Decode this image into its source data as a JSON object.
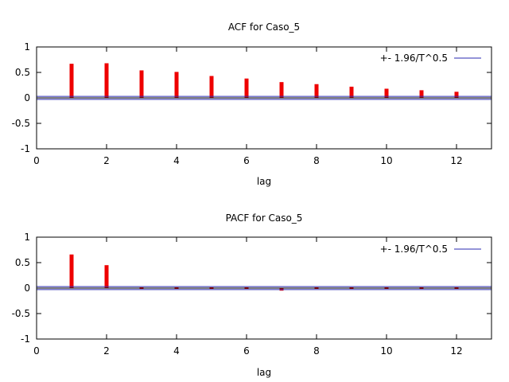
{
  "chart_data": [
    {
      "type": "bar",
      "title": "ACF for Caso_5",
      "xlabel": "lag",
      "ylabel": "",
      "xlim": [
        0,
        13
      ],
      "ylim": [
        -1,
        1
      ],
      "xticks": [
        "0",
        "2",
        "4",
        "6",
        "8",
        "10",
        "12"
      ],
      "yticks": [
        "1",
        "0.5",
        "0",
        "-0.5",
        "-1"
      ],
      "legend": {
        "label": "+- 1.96/T^0.5",
        "color": "#2a2ab0",
        "position": "top-right"
      },
      "band": 0.03,
      "bar_color": "#ee0000",
      "lags": [
        1,
        2,
        3,
        4,
        5,
        6,
        7,
        8,
        9,
        10,
        11,
        12
      ],
      "values": [
        0.67,
        0.68,
        0.54,
        0.51,
        0.43,
        0.38,
        0.31,
        0.27,
        0.22,
        0.18,
        0.15,
        0.12
      ]
    },
    {
      "type": "bar",
      "title": "PACF for Caso_5",
      "xlabel": "lag",
      "ylabel": "",
      "xlim": [
        0,
        13
      ],
      "ylim": [
        -1,
        1
      ],
      "xticks": [
        "0",
        "2",
        "4",
        "6",
        "8",
        "10",
        "12"
      ],
      "yticks": [
        "1",
        "0.5",
        "0",
        "-0.5",
        "-1"
      ],
      "legend": {
        "label": "+- 1.96/T^0.5",
        "color": "#2a2ab0",
        "position": "top-right"
      },
      "band": 0.03,
      "bar_color": "#ee0000",
      "lags": [
        1,
        2,
        3,
        4,
        5,
        6,
        7,
        8,
        9,
        10,
        11,
        12
      ],
      "values": [
        0.66,
        0.45,
        0.0,
        0.0,
        0.02,
        0.0,
        -0.05,
        0.0,
        -0.01,
        -0.01,
        0.0,
        -0.01
      ]
    }
  ]
}
